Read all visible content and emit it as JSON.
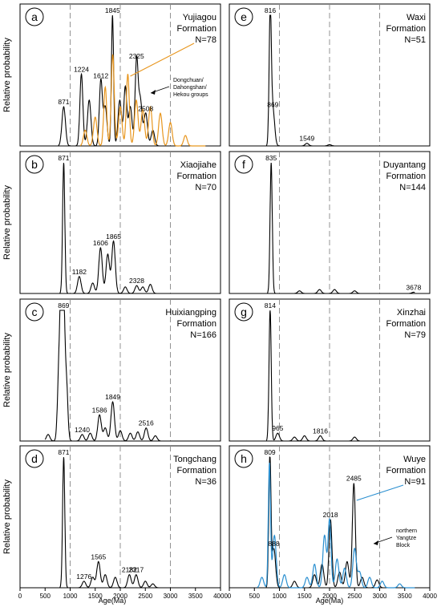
{
  "figure": {
    "ylabel": "Relative probability",
    "xlabel": "Age(Ma)",
    "xticks": [
      0,
      500,
      1000,
      1500,
      2000,
      2500,
      3000,
      3500,
      4000
    ],
    "xlim": [
      0,
      4000
    ],
    "dashed_lines": [
      1000,
      2000,
      3000
    ]
  },
  "chart_data": [
    {
      "type": "line",
      "letter": "a",
      "column": 0,
      "row": 0,
      "label_lines": [
        "Yujiagou",
        "Formation",
        "N=78"
      ],
      "series": [
        {
          "name": "",
          "color": "#000000",
          "peaks": [
            [
              871,
              0.3
            ],
            [
              1224,
              0.55
            ],
            [
              1380,
              0.35
            ],
            [
              1612,
              0.5
            ],
            [
              1700,
              0.3
            ],
            [
              1845,
              1.0
            ],
            [
              1990,
              0.35
            ],
            [
              2100,
              0.45
            ],
            [
              2200,
              0.3
            ],
            [
              2325,
              0.65
            ],
            [
              2400,
              0.35
            ],
            [
              2508,
              0.25
            ],
            [
              2650,
              0.12
            ]
          ]
        },
        {
          "name": "Dongchuan/ Dahongshan/ Hekou groups",
          "color": "#e8961e",
          "peaks": [
            [
              1300,
              0.12
            ],
            [
              1500,
              0.22
            ],
            [
              1700,
              0.45
            ],
            [
              1850,
              0.7
            ],
            [
              2000,
              0.3
            ],
            [
              2150,
              0.55
            ],
            [
              2320,
              0.35
            ],
            [
              2450,
              0.28
            ],
            [
              2600,
              0.3
            ],
            [
              2800,
              0.25
            ],
            [
              3000,
              0.18
            ],
            [
              3300,
              0.08
            ]
          ]
        }
      ],
      "annotations": [
        {
          "text": "871",
          "x": 871,
          "y": 0.3
        },
        {
          "text": "1224",
          "x": 1224,
          "y": 0.55
        },
        {
          "text": "1612",
          "x": 1612,
          "y": 0.5
        },
        {
          "text": "1845",
          "x": 1845,
          "y": 1.0
        },
        {
          "text": "2325",
          "x": 2325,
          "y": 0.65
        },
        {
          "text": "2508",
          "x": 2508,
          "y": 0.25
        }
      ],
      "arrows": [
        {
          "label_lines": [
            "Dongchuan/",
            "Dahongshan/",
            "Hekou groups"
          ],
          "color": "#000000"
        }
      ]
    },
    {
      "type": "line",
      "letter": "b",
      "column": 0,
      "row": 1,
      "label_lines": [
        "Xiaojiahe",
        "Formation",
        "N=70"
      ],
      "series": [
        {
          "name": "",
          "color": "#000000",
          "peaks": [
            [
              871,
              1.0
            ],
            [
              1182,
              0.13
            ],
            [
              1450,
              0.08
            ],
            [
              1606,
              0.35
            ],
            [
              1750,
              0.3
            ],
            [
              1865,
              0.4
            ],
            [
              2100,
              0.05
            ],
            [
              2328,
              0.06
            ],
            [
              2450,
              0.05
            ],
            [
              2600,
              0.07
            ]
          ]
        }
      ],
      "annotations": [
        {
          "text": "871",
          "x": 871,
          "y": 1.0
        },
        {
          "text": "1182",
          "x": 1182,
          "y": 0.13
        },
        {
          "text": "1606",
          "x": 1606,
          "y": 0.35
        },
        {
          "text": "1865",
          "x": 1865,
          "y": 0.4
        },
        {
          "text": "2328",
          "x": 2328,
          "y": 0.06
        }
      ]
    },
    {
      "type": "line",
      "letter": "c",
      "column": 0,
      "row": 2,
      "label_lines": [
        "Huixiangping",
        "Formation",
        "N=166"
      ],
      "series": [
        {
          "name": "",
          "color": "#000000",
          "peaks": [
            [
              560,
              0.05
            ],
            [
              780,
              0.6
            ],
            [
              820,
              0.9
            ],
            [
              869,
              1.0
            ],
            [
              920,
              0.5
            ],
            [
              1240,
              0.05
            ],
            [
              1400,
              0.06
            ],
            [
              1586,
              0.2
            ],
            [
              1700,
              0.1
            ],
            [
              1849,
              0.3
            ],
            [
              2000,
              0.08
            ],
            [
              2200,
              0.06
            ],
            [
              2350,
              0.07
            ],
            [
              2516,
              0.1
            ],
            [
              2700,
              0.04
            ]
          ]
        }
      ],
      "annotations": [
        {
          "text": "869",
          "x": 869,
          "y": 1.0
        },
        {
          "text": "1240",
          "x": 1240,
          "y": 0.05
        },
        {
          "text": "1586",
          "x": 1586,
          "y": 0.2
        },
        {
          "text": "1849",
          "x": 1849,
          "y": 0.3
        },
        {
          "text": "2516",
          "x": 2516,
          "y": 0.1
        }
      ]
    },
    {
      "type": "line",
      "letter": "d",
      "column": 0,
      "row": 3,
      "label_lines": [
        "Tongchang",
        "Formation",
        "N=36"
      ],
      "series": [
        {
          "name": "",
          "color": "#000000",
          "peaks": [
            [
              871,
              1.0
            ],
            [
              1276,
              0.05
            ],
            [
              1450,
              0.08
            ],
            [
              1565,
              0.2
            ],
            [
              1700,
              0.1
            ],
            [
              1900,
              0.08
            ],
            [
              2182,
              0.1
            ],
            [
              2317,
              0.1
            ],
            [
              2500,
              0.05
            ],
            [
              2650,
              0.03
            ]
          ]
        }
      ],
      "annotations": [
        {
          "text": "871",
          "x": 871,
          "y": 1.0
        },
        {
          "text": "1276",
          "x": 1276,
          "y": 0.05
        },
        {
          "text": "1565",
          "x": 1565,
          "y": 0.2
        },
        {
          "text": "2182",
          "x": 2182,
          "y": 0.1
        },
        {
          "text": "2317",
          "x": 2317,
          "y": 0.1
        }
      ]
    },
    {
      "type": "line",
      "letter": "e",
      "column": 1,
      "row": 0,
      "label_lines": [
        "Waxi",
        "Formation",
        "N=51"
      ],
      "series": [
        {
          "name": "",
          "color": "#000000",
          "peaks": [
            [
              816,
              1.0
            ],
            [
              869,
              0.28
            ],
            [
              1549,
              0.02
            ],
            [
              2000,
              0.01
            ]
          ]
        }
      ],
      "annotations": [
        {
          "text": "816",
          "x": 816,
          "y": 1.0
        },
        {
          "text": "869",
          "x": 869,
          "y": 0.28
        },
        {
          "text": "1549",
          "x": 1549,
          "y": 0.02
        }
      ]
    },
    {
      "type": "line",
      "letter": "f",
      "column": 1,
      "row": 1,
      "label_lines": [
        "Duyantang",
        "Formation",
        "N=144"
      ],
      "series": [
        {
          "name": "",
          "color": "#000000",
          "peaks": [
            [
              835,
              1.0
            ],
            [
              1400,
              0.02
            ],
            [
              1800,
              0.03
            ],
            [
              2100,
              0.03
            ],
            [
              2500,
              0.02
            ],
            [
              3678,
              0.01
            ]
          ]
        }
      ],
      "annotations": [
        {
          "text": "835",
          "x": 835,
          "y": 1.0
        },
        {
          "text": "3678",
          "x": 3678,
          "y": 0.01
        }
      ]
    },
    {
      "type": "line",
      "letter": "g",
      "column": 1,
      "row": 2,
      "label_lines": [
        "Xinzhai",
        "Formation",
        "N=79"
      ],
      "series": [
        {
          "name": "",
          "color": "#000000",
          "peaks": [
            [
              814,
              1.0
            ],
            [
              965,
              0.06
            ],
            [
              1300,
              0.03
            ],
            [
              1500,
              0.04
            ],
            [
              1816,
              0.04
            ],
            [
              2500,
              0.03
            ]
          ]
        }
      ],
      "annotations": [
        {
          "text": "814",
          "x": 814,
          "y": 1.0
        },
        {
          "text": "965",
          "x": 965,
          "y": 0.06
        },
        {
          "text": "1816",
          "x": 1816,
          "y": 0.04
        }
      ]
    },
    {
      "type": "line",
      "letter": "h",
      "column": 1,
      "row": 3,
      "label_lines": [
        "Wuye",
        "Formation",
        "N=91"
      ],
      "series": [
        {
          "name": "",
          "color": "#000000",
          "peaks": [
            [
              809,
              1.0
            ],
            [
              888,
              0.3
            ],
            [
              1300,
              0.05
            ],
            [
              1700,
              0.1
            ],
            [
              1850,
              0.18
            ],
            [
              2018,
              0.52
            ],
            [
              2200,
              0.12
            ],
            [
              2350,
              0.2
            ],
            [
              2485,
              0.8
            ],
            [
              2650,
              0.08
            ],
            [
              2950,
              0.06
            ]
          ]
        },
        {
          "name": "northern Yangtze Block",
          "color": "#2a8fd0",
          "peaks": [
            [
              650,
              0.08
            ],
            [
              800,
              0.95
            ],
            [
              900,
              0.4
            ],
            [
              1100,
              0.1
            ],
            [
              1550,
              0.08
            ],
            [
              1700,
              0.18
            ],
            [
              1900,
              0.4
            ],
            [
              2000,
              0.52
            ],
            [
              2150,
              0.22
            ],
            [
              2300,
              0.15
            ],
            [
              2500,
              0.3
            ],
            [
              2600,
              0.12
            ],
            [
              2800,
              0.08
            ],
            [
              3050,
              0.05
            ],
            [
              3400,
              0.03
            ]
          ]
        }
      ],
      "annotations": [
        {
          "text": "809",
          "x": 809,
          "y": 1.0
        },
        {
          "text": "888",
          "x": 888,
          "y": 0.3
        },
        {
          "text": "2018",
          "x": 2018,
          "y": 0.52
        },
        {
          "text": "2485",
          "x": 2485,
          "y": 0.8
        }
      ],
      "arrows": [
        {
          "label_lines": [
            "northern",
            "Yangtze",
            "Block"
          ],
          "color": "#000000"
        }
      ]
    }
  ]
}
